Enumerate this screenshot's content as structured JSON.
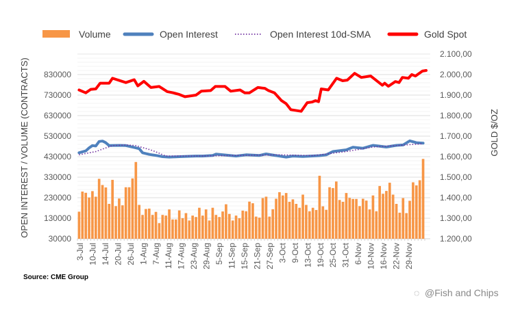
{
  "chart_data": {
    "type": "bar+line",
    "legend": [
      "Volume",
      "Open Interest",
      "Open Interest 10d-SMA",
      "Gold Spot"
    ],
    "legend_position": "top",
    "ylabel_left": "OPEN INTEREST / VOLUME (CONTRACTS)",
    "ylabel_right": "GOLD $/OZ",
    "ylim_left": [
      30000,
      930000
    ],
    "ylim_right": [
      1200,
      2100
    ],
    "yticks_left": [
      "30000",
      "130000",
      "230000",
      "330000",
      "430000",
      "530000",
      "630000",
      "730000",
      "830000"
    ],
    "yticks_right": [
      "1.200,00",
      "1.300,00",
      "1.400,00",
      "1.500,00",
      "1.600,00",
      "1.700,00",
      "1.800,00",
      "1.900,00",
      "2.000,00",
      "2.100,00"
    ],
    "xticks": [
      "3-Jul",
      "10-Jul",
      "14-Jul",
      "20-Jul",
      "26-Jul",
      "1-Aug",
      "7-Aug",
      "11-Aug",
      "17-Aug",
      "23-Aug",
      "29-Aug",
      "5-Sep",
      "11-Sep",
      "15-Sep",
      "21-Sep",
      "27-Sep",
      "3-Oct",
      "9-Oct",
      "13-Oct",
      "19-Oct",
      "25-Oct",
      "31-Oct",
      "6-Nov",
      "10-Nov",
      "16-Nov",
      "22-Nov",
      "29-Nov"
    ],
    "colors": {
      "volume": "#F79646",
      "oi": "#4F81BD",
      "sma": "#7030A0",
      "gold": "#FF0000"
    },
    "volume": [
      162000,
      260000,
      254000,
      231000,
      262000,
      235000,
      322000,
      292000,
      280000,
      200000,
      317000,
      189000,
      226000,
      193000,
      281000,
      281000,
      324000,
      404000,
      195000,
      146000,
      175000,
      177000,
      146000,
      161000,
      106000,
      146000,
      143000,
      173000,
      124000,
      124000,
      168000,
      130000,
      155000,
      119000,
      143000,
      136000,
      181000,
      143000,
      173000,
      119000,
      181000,
      146000,
      136000,
      163000,
      198000,
      151000,
      119000,
      143000,
      130000,
      167000,
      164000,
      211000,
      203000,
      138000,
      133000,
      228000,
      235000,
      138000,
      174000,
      225000,
      257000,
      241000,
      253000,
      210000,
      222000,
      200000,
      181000,
      245000,
      195000,
      164000,
      181000,
      170000,
      337000,
      188000,
      171000,
      281000,
      277000,
      309000,
      219000,
      210000,
      253000,
      229000,
      224000,
      224000,
      189000,
      225000,
      216000,
      173000,
      241000,
      164000,
      287000,
      249000,
      263000,
      303000,
      245000,
      200000,
      157000,
      228000,
      155000,
      215000,
      305000,
      290000,
      315000,
      419000
    ],
    "open_interest": [
      [
        0,
        449000
      ],
      [
        2,
        458000
      ],
      [
        3,
        473000
      ],
      [
        4,
        484000
      ],
      [
        5,
        482000
      ],
      [
        6,
        504000
      ],
      [
        7,
        506000
      ],
      [
        8,
        498000
      ],
      [
        9,
        484000
      ],
      [
        12,
        485000
      ],
      [
        14,
        484000
      ],
      [
        16,
        477000
      ],
      [
        18,
        469000
      ],
      [
        19,
        449000
      ],
      [
        21,
        441000
      ],
      [
        23,
        436000
      ],
      [
        25,
        430000
      ],
      [
        27,
        428000
      ],
      [
        30,
        430000
      ],
      [
        35,
        433000
      ],
      [
        37,
        433000
      ],
      [
        40,
        436000
      ],
      [
        41,
        442000
      ],
      [
        43,
        439000
      ],
      [
        47,
        433000
      ],
      [
        50,
        439000
      ],
      [
        54,
        436000
      ],
      [
        56,
        443000
      ],
      [
        60,
        433000
      ],
      [
        62,
        428000
      ],
      [
        64,
        433000
      ],
      [
        67,
        431000
      ],
      [
        72,
        435000
      ],
      [
        74,
        439000
      ],
      [
        76,
        455000
      ],
      [
        80,
        463000
      ],
      [
        82,
        476000
      ],
      [
        85,
        471000
      ],
      [
        88,
        485000
      ],
      [
        92,
        477000
      ],
      [
        95,
        485000
      ],
      [
        97,
        487000
      ],
      [
        99,
        507000
      ],
      [
        101,
        498000
      ],
      [
        103,
        496000
      ]
    ],
    "oi_sma10": [
      [
        0,
        439000
      ],
      [
        5,
        455000
      ],
      [
        10,
        484000
      ],
      [
        14,
        487000
      ],
      [
        17,
        484000
      ],
      [
        22,
        460000
      ],
      [
        26,
        433000
      ],
      [
        35,
        433000
      ],
      [
        60,
        439000
      ],
      [
        70,
        435000
      ],
      [
        80,
        455000
      ],
      [
        88,
        477000
      ],
      [
        95,
        484000
      ],
      [
        103,
        493000
      ]
    ],
    "gold_spot": [
      [
        0,
        1925
      ],
      [
        2,
        1911
      ],
      [
        3.5,
        1928
      ],
      [
        5,
        1930
      ],
      [
        6.3,
        1958
      ],
      [
        9,
        1958
      ],
      [
        10,
        1982
      ],
      [
        14,
        1961
      ],
      [
        16.5,
        1975
      ],
      [
        17.6,
        1945
      ],
      [
        19.4,
        1967
      ],
      [
        21.5,
        1937
      ],
      [
        24,
        1942
      ],
      [
        26.4,
        1917
      ],
      [
        28.2,
        1911
      ],
      [
        30,
        1903
      ],
      [
        31.7,
        1892
      ],
      [
        35,
        1900
      ],
      [
        36.6,
        1919
      ],
      [
        39.4,
        1922
      ],
      [
        40.8,
        1942
      ],
      [
        43.7,
        1942
      ],
      [
        45.4,
        1919
      ],
      [
        48.2,
        1925
      ],
      [
        49.6,
        1911
      ],
      [
        51,
        1911
      ],
      [
        53.5,
        1937
      ],
      [
        55.6,
        1933
      ],
      [
        56.7,
        1922
      ],
      [
        58.5,
        1911
      ],
      [
        60.6,
        1873
      ],
      [
        62,
        1858
      ],
      [
        63.4,
        1829
      ],
      [
        66.5,
        1821
      ],
      [
        68.3,
        1863
      ],
      [
        69.7,
        1866
      ],
      [
        70.8,
        1873
      ],
      [
        71.7,
        1868
      ],
      [
        72.5,
        1930
      ],
      [
        74.6,
        1925
      ],
      [
        77.1,
        1982
      ],
      [
        78.9,
        1970
      ],
      [
        80.3,
        1973
      ],
      [
        82.5,
        2006
      ],
      [
        84.5,
        1986
      ],
      [
        87.3,
        1993
      ],
      [
        90.8,
        1948
      ],
      [
        91.5,
        1958
      ],
      [
        92.6,
        1943
      ],
      [
        94.7,
        1966
      ],
      [
        95.8,
        1961
      ],
      [
        96.8,
        1986
      ],
      [
        98.6,
        1982
      ],
      [
        99.6,
        2000
      ],
      [
        100.7,
        1993
      ],
      [
        102.8,
        2017
      ],
      [
        103.9,
        2020
      ]
    ]
  },
  "source": "Source: CME Group",
  "watermark": "@Fish and Chips"
}
